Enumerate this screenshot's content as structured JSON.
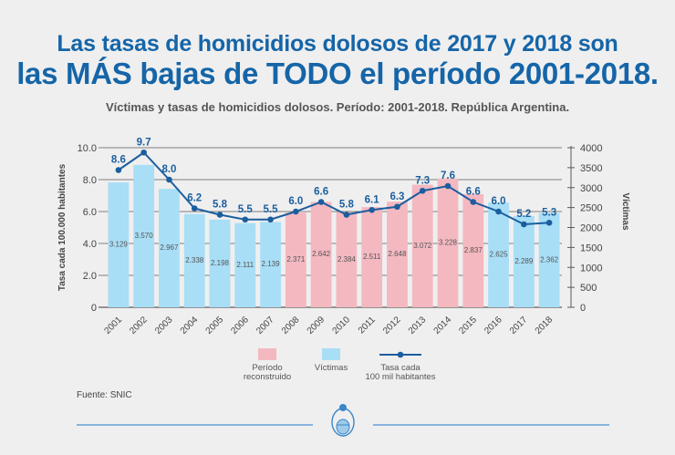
{
  "header": {
    "title_line1": "Las tasas de homicidios dolosos de 2017 y 2018 son",
    "title_line2": "las MÁS bajas de TODO el período 2001-2018.",
    "subtitle": "Víctimas y tasas de homicidios dolosos. Período: 2001-2018. República Argentina."
  },
  "source": "Fuente: SNIC",
  "colors": {
    "victims_bar": "#a8def6",
    "reconstructed_bar": "#f4b8c1",
    "rate_line": "#1b5e9e",
    "title_blue": "#1565a8"
  },
  "chart_data": {
    "type": "bar",
    "categories": [
      "2001",
      "2002",
      "2003",
      "2004",
      "2005",
      "2006",
      "2007",
      "2008",
      "2009",
      "2010",
      "2011",
      "2012",
      "2013",
      "2014",
      "2015",
      "2016",
      "2017",
      "2018"
    ],
    "series": [
      {
        "name": "Víctimas",
        "type": "bar",
        "axis": "right",
        "values": [
          3129,
          3570,
          2967,
          2338,
          2198,
          2111,
          2139,
          2371,
          2642,
          2384,
          2511,
          2648,
          3072,
          3228,
          2837,
          2625,
          2289,
          2362
        ],
        "value_labels": [
          "3.129",
          "3.570",
          "2.967",
          "2.338",
          "2.198",
          "2.111",
          "2.139",
          "2.371",
          "2.642",
          "2.384",
          "2.511",
          "2.648",
          "3.072",
          "3.228",
          "2.837",
          "2.625",
          "2.289",
          "2.362"
        ],
        "reconstructed": [
          false,
          false,
          false,
          false,
          false,
          false,
          false,
          true,
          true,
          true,
          true,
          true,
          true,
          true,
          true,
          false,
          false,
          false
        ]
      },
      {
        "name": "Tasa cada 100 mil habitantes",
        "type": "line",
        "axis": "left",
        "values": [
          8.6,
          9.7,
          8.0,
          6.2,
          5.8,
          5.5,
          5.5,
          6.0,
          6.6,
          5.8,
          6.1,
          6.3,
          7.3,
          7.6,
          6.6,
          6.0,
          5.2,
          5.3
        ],
        "value_labels": [
          "8.6",
          "9.7",
          "8.0",
          "6.2",
          "5.8",
          "5.5",
          "5.5",
          "6.0",
          "6.6",
          "5.8",
          "6.1",
          "6.3",
          "7.3",
          "7.6",
          "6.6",
          "6.0",
          "5.2",
          "5.3"
        ]
      }
    ],
    "left_axis": {
      "label": "Tasa cada 100.000 habitantes",
      "ylim": [
        0,
        10
      ],
      "ticks": [
        0,
        2,
        4,
        6,
        8,
        10
      ],
      "tick_labels": [
        "0",
        "2.0",
        "4.0",
        "6.0",
        "8.0",
        "10.0"
      ]
    },
    "right_axis": {
      "label": "Víctimas",
      "ylim": [
        0,
        4000
      ],
      "ticks": [
        0,
        500,
        1000,
        1500,
        2000,
        2500,
        3000,
        3500,
        4000
      ],
      "tick_labels": [
        "0",
        "500",
        "1000",
        "1500",
        "2000",
        "2500",
        "3000",
        "3500",
        "4000"
      ]
    },
    "grid": true,
    "legend": {
      "placement": "bottom",
      "items": [
        {
          "key": "reconstructed",
          "label_lines": [
            "Período",
            "reconstruido"
          ]
        },
        {
          "key": "victims",
          "label_lines": [
            "Víctimas"
          ]
        },
        {
          "key": "rate",
          "label_lines": [
            "Tasa cada",
            "100 mil habitantes"
          ]
        }
      ]
    }
  }
}
